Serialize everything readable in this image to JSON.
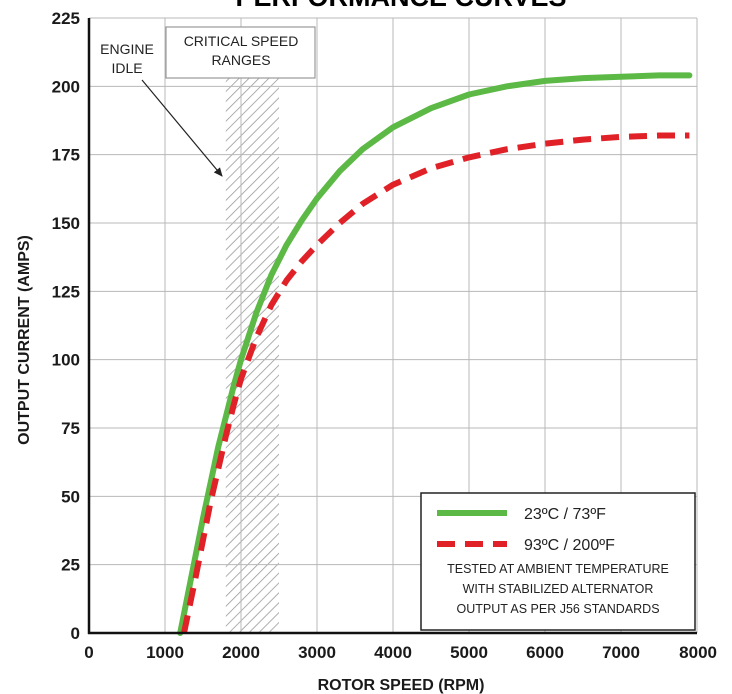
{
  "chart_data": {
    "type": "line",
    "title": "PERFORMANCE CURVES",
    "xlabel": "ROTOR SPEED (RPM)",
    "ylabel": "OUTPUT CURRENT (AMPS)",
    "xlim": [
      0,
      8000
    ],
    "ylim": [
      0,
      225
    ],
    "x_ticks": [
      "0",
      "1000",
      "2000",
      "3000",
      "4000",
      "5000",
      "6000",
      "7000",
      "8000"
    ],
    "y_ticks": [
      "0",
      "25",
      "50",
      "75",
      "100",
      "125",
      "150",
      "175",
      "200",
      "225"
    ],
    "grid": true,
    "legend_position": "bottom-right",
    "series": [
      {
        "name": "23ºC / 73ºF",
        "color": "#5cb946",
        "style": "solid",
        "x": [
          1200,
          1300,
          1400,
          1500,
          1600,
          1700,
          1800,
          1900,
          2000,
          2200,
          2400,
          2600,
          2800,
          3000,
          3300,
          3600,
          4000,
          4500,
          5000,
          5500,
          6000,
          6500,
          7000,
          7500,
          7900
        ],
        "y": [
          0,
          14,
          28,
          42,
          55,
          68,
          79,
          90,
          100,
          117,
          131,
          142,
          151,
          159,
          169,
          177,
          185,
          192,
          197,
          200,
          202,
          203,
          203.5,
          204,
          204
        ]
      },
      {
        "name": "93ºC / 200ºF",
        "color": "#e02127",
        "style": "dashed",
        "x": [
          1250,
          1400,
          1500,
          1600,
          1700,
          1800,
          1900,
          2000,
          2200,
          2400,
          2600,
          2800,
          3000,
          3300,
          3600,
          4000,
          4500,
          5000,
          5500,
          6000,
          6500,
          7000,
          7500,
          7900
        ],
        "y": [
          0,
          20,
          34,
          48,
          60,
          72,
          83,
          93,
          108,
          120,
          129,
          136,
          142,
          150,
          157,
          164,
          170,
          174,
          177,
          179,
          180.5,
          181.5,
          182,
          182
        ]
      }
    ],
    "annotations": [
      {
        "text_lines": [
          "ENGINE",
          "IDLE"
        ],
        "points_to_rpm": 1750
      },
      {
        "text_lines": [
          "CRITICAL SPEED",
          "RANGES"
        ],
        "range_rpm": [
          1800,
          2500
        ]
      }
    ],
    "note_lines": [
      "TESTED AT AMBIENT TEMPERATURE",
      "WITH STABILIZED ALTERNATOR",
      "OUTPUT AS PER J56 STANDARDS"
    ]
  }
}
